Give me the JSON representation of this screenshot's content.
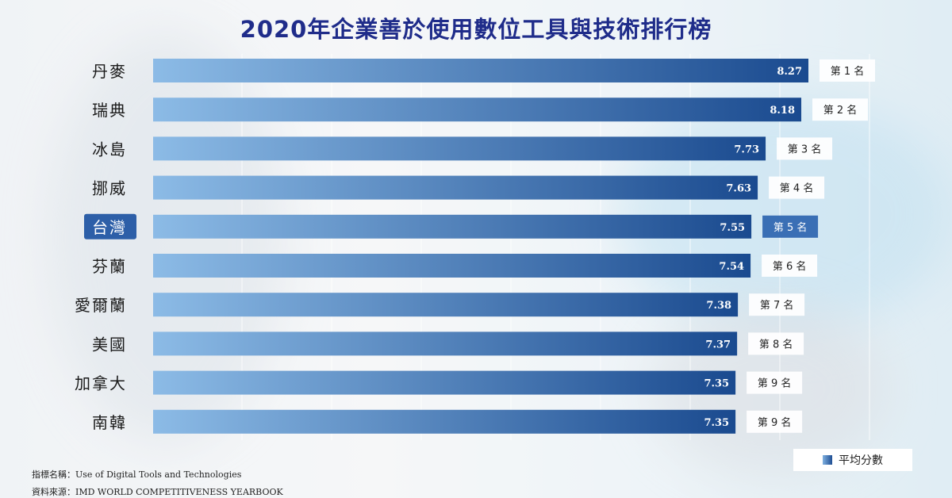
{
  "chart_data": {
    "type": "bar",
    "orientation": "horizontal",
    "title": "2020年企業善於使用數位工具與技術排行榜",
    "categories": [
      "丹麥",
      "瑞典",
      "冰島",
      "挪威",
      "台灣",
      "芬蘭",
      "愛爾蘭",
      "美國",
      "加拿大",
      "南韓"
    ],
    "values": [
      8.27,
      8.18,
      7.73,
      7.63,
      7.55,
      7.54,
      7.38,
      7.37,
      7.35,
      7.35
    ],
    "value_labels": [
      "8.27",
      "8.18",
      "7.73",
      "7.63",
      "7.55",
      "7.54",
      "7.38",
      "7.37",
      "7.35",
      "7.35"
    ],
    "rank_labels": [
      "第 1 名",
      "第 2 名",
      "第 3 名",
      "第 4 名",
      "第 5 名",
      "第 6 名",
      "第 7 名",
      "第 8 名",
      "第 9 名",
      "第 9 名"
    ],
    "highlight_category": "台灣",
    "legend": "平均分數",
    "legend_position": "bottom-right",
    "grid": true,
    "colors": {
      "bar_start": "#8cbbe6",
      "bar_end": "#1a4a8f",
      "highlight": "#2d5fa8",
      "title": "#1f2c8a"
    }
  },
  "footnotes": {
    "indicator": "指標名稱：Use of Digital Tools and Technologies",
    "source": "資料來源：IMD WORLD COMPETITIVENESS YEARBOOK"
  }
}
